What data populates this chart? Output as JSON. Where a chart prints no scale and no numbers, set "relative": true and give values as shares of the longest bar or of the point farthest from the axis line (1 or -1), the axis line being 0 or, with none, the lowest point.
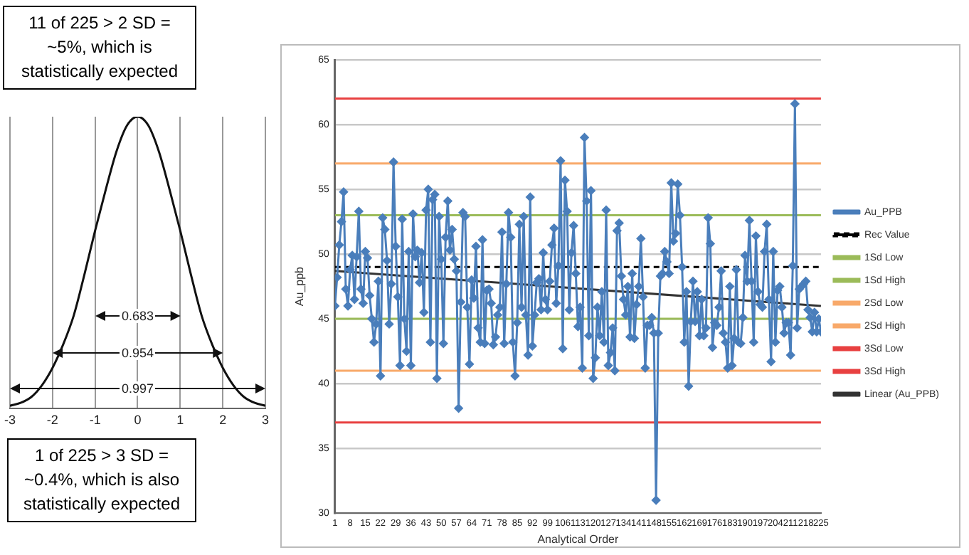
{
  "chart_data": [
    {
      "type": "line",
      "relative": true,
      "grid": "x",
      "xlim": [
        -3,
        3
      ],
      "xticks": [
        -3,
        -2,
        -1,
        0,
        1,
        2,
        3
      ],
      "annotations": [
        "0.683",
        "0.954",
        "0.997"
      ],
      "x": [
        -3,
        -2.75,
        -2.5,
        -2.25,
        -2,
        -1.75,
        -1.5,
        -1.25,
        -1,
        -0.75,
        -0.5,
        -0.25,
        0,
        0.25,
        0.5,
        0.75,
        1,
        1.25,
        1.5,
        1.75,
        2,
        2.25,
        2.5,
        2.75,
        3
      ],
      "series": [
        {
          "color": "#111111",
          "values": [
            0.01,
            0.02,
            0.04,
            0.08,
            0.14,
            0.22,
            0.32,
            0.46,
            0.61,
            0.75,
            0.88,
            0.97,
            1,
            0.97,
            0.88,
            0.75,
            0.61,
            0.46,
            0.32,
            0.22,
            0.14,
            0.08,
            0.04,
            0.02,
            0.01
          ]
        }
      ]
    },
    {
      "type": "line",
      "xlabel": "Analytical Order",
      "ylabel": "Au_ppb",
      "legend": "right",
      "grid": "y",
      "annotations": [
        "11 of 225 > 2 SD = ~5%, which is statistically expected",
        "1 of 225 > 3 SD = ~0.4%, which is also statistically expected"
      ],
      "xlim": [
        1,
        225
      ],
      "xticks": [
        1,
        8,
        15,
        22,
        29,
        36,
        43,
        50,
        57,
        64,
        71,
        78,
        85,
        92,
        99,
        106,
        113,
        120,
        127,
        134,
        141,
        148,
        155,
        162,
        169,
        176,
        183,
        190,
        197,
        204,
        211,
        218,
        225
      ],
      "ylim": [
        30,
        65
      ],
      "yticks": [
        30,
        35,
        40,
        45,
        50,
        55,
        60,
        65
      ],
      "x": [
        1,
        2,
        3,
        4,
        5,
        6,
        7,
        8,
        9,
        10,
        11,
        12,
        13,
        14,
        15,
        16,
        17,
        18,
        19,
        20,
        21,
        22,
        23,
        24,
        25,
        26,
        27,
        28,
        29,
        30,
        31,
        32,
        33,
        34,
        35,
        36,
        37,
        38,
        39,
        40,
        41,
        42,
        43,
        44,
        45,
        46,
        47,
        48,
        49,
        50,
        51,
        52,
        53,
        54,
        55,
        56,
        57,
        58,
        59,
        60,
        61,
        62,
        63,
        64,
        65,
        66,
        67,
        68,
        69,
        70,
        71,
        72,
        73,
        74,
        75,
        76,
        77,
        78,
        79,
        80,
        81,
        82,
        83,
        84,
        85,
        86,
        87,
        88,
        89,
        90,
        91,
        92,
        93,
        94,
        95,
        96,
        97,
        98,
        99,
        100,
        101,
        102,
        103,
        104,
        105,
        106,
        107,
        108,
        109,
        110,
        111,
        112,
        113,
        114,
        115,
        116,
        117,
        118,
        119,
        120,
        121,
        122,
        123,
        124,
        125,
        126,
        127,
        128,
        129,
        130,
        131,
        132,
        133,
        134,
        135,
        136,
        137,
        138,
        139,
        140,
        141,
        142,
        143,
        144,
        145,
        146,
        147,
        148,
        149,
        150,
        151,
        152,
        153,
        154,
        155,
        156,
        157,
        158,
        159,
        160,
        161,
        162,
        163,
        164,
        165,
        166,
        167,
        168,
        169,
        170,
        171,
        172,
        173,
        174,
        175,
        176,
        177,
        178,
        179,
        180,
        181,
        182,
        183,
        184,
        185,
        186,
        187,
        188,
        189,
        190,
        191,
        192,
        193,
        194,
        195,
        196,
        197,
        198,
        199,
        200,
        201,
        202,
        203,
        204,
        205,
        206,
        207,
        208,
        209,
        210,
        211,
        212,
        213,
        214,
        215,
        216,
        217,
        218,
        219,
        220,
        221,
        222,
        223,
        224,
        225
      ],
      "series": [
        {
          "name": "Au_PPB",
          "color": "#4a7ebb",
          "marker": "diamond",
          "values": [
            46,
            48.2,
            50.7,
            52.5,
            54.8,
            47.3,
            46,
            48.8,
            49.9,
            46.5,
            49.8,
            53.3,
            47.3,
            46.2,
            50.2,
            49.7,
            46.8,
            45,
            43.2,
            44.6,
            47.9,
            40.6,
            52.8,
            51.9,
            49.5,
            44.6,
            47.7,
            57.1,
            50.6,
            46.7,
            41.4,
            52.7,
            45,
            42.5,
            50.2,
            41.4,
            53.1,
            49.8,
            50.3,
            47.8,
            50.1,
            45.5,
            53.4,
            55,
            43.2,
            54.2,
            54.6,
            40.4,
            52.9,
            49.6,
            43.1,
            51.3,
            54.1,
            50.3,
            51.9,
            49.6,
            48.7,
            38.1,
            46.3,
            53.2,
            52.9,
            45.9,
            41.5,
            48,
            46.6,
            50.6,
            44.3,
            43.2,
            51.1,
            43.1,
            47.2,
            47.3,
            46.2,
            43,
            43.6,
            45.3,
            45.9,
            51.7,
            43.1,
            47.7,
            53.2,
            51.3,
            43.2,
            40.6,
            44.7,
            52.3,
            45.9,
            52.9,
            45.3,
            42.2,
            54.4,
            42.9,
            45.3,
            47.8,
            48.1,
            45.7,
            50.1,
            46.5,
            45.7,
            47.9,
            50.7,
            52,
            46.2,
            49.1,
            57.2,
            42.7,
            55.7,
            53.3,
            45.7,
            50.1,
            52.2,
            48.5,
            44.4,
            45.9,
            41.2,
            59,
            54.1,
            43.7,
            54.9,
            40.4,
            42,
            45.9,
            43.7,
            47.1,
            43.2,
            53.4,
            41.4,
            42.4,
            44.3,
            41,
            51.8,
            52.4,
            48.3,
            46.5,
            45.3,
            47.5,
            43.6,
            48.5,
            43.5,
            46.1,
            47.5,
            51.2,
            46.7,
            41.2,
            44.5,
            44.5,
            45.1,
            43.9,
            31,
            43.9,
            48.3,
            48.5,
            50.2,
            49.4,
            48.5,
            55.5,
            51,
            51.6,
            55.4,
            53,
            49,
            43.2,
            47.1,
            39.8,
            44.8,
            47.9,
            44.8,
            47.1,
            43.7,
            46.5,
            43.7,
            44.3,
            52.8,
            50.8,
            42.8,
            44.7,
            44.5,
            45.9,
            48.7,
            43.9,
            43.2,
            41.2,
            47.5,
            41.4,
            43.5,
            48.8,
            43.2,
            43.1,
            45.1,
            49.9,
            47.9,
            52.6,
            47.9,
            43.2,
            51.4,
            47.1,
            46.1,
            45.9,
            50.2,
            52.3,
            46.5,
            41.7,
            50.2,
            43.2,
            47.2,
            47.5,
            45.9,
            43.9,
            44.7,
            44.7,
            42.2,
            49.1,
            61.6,
            44.3,
            47.3,
            47.5,
            47.7,
            47.9,
            45.7,
            45.1,
            44,
            45.5,
            44,
            45,
            44
          ]
        },
        {
          "name": "Linear (Au_PPB)",
          "color": "#333333",
          "x": [
            1,
            225
          ],
          "values": [
            48.7,
            46
          ]
        }
      ],
      "ref_lines": [
        {
          "axis": "y",
          "value": 49,
          "label": "Rec Value",
          "color": "#000000",
          "line_style": "dashed"
        },
        {
          "axis": "y",
          "value": 45,
          "label": "1Sd Low",
          "color": "#9bbb59"
        },
        {
          "axis": "y",
          "value": 53,
          "label": "1Sd High",
          "color": "#9bbb59"
        },
        {
          "axis": "y",
          "value": 41,
          "label": "2Sd Low",
          "color": "#f8a96a"
        },
        {
          "axis": "y",
          "value": 57,
          "label": "2Sd High",
          "color": "#f8a96a"
        },
        {
          "axis": "y",
          "value": 37,
          "label": "3Sd Low",
          "color": "#e84040"
        },
        {
          "axis": "y",
          "value": 62,
          "label": "3Sd High",
          "color": "#e84040"
        }
      ]
    }
  ]
}
